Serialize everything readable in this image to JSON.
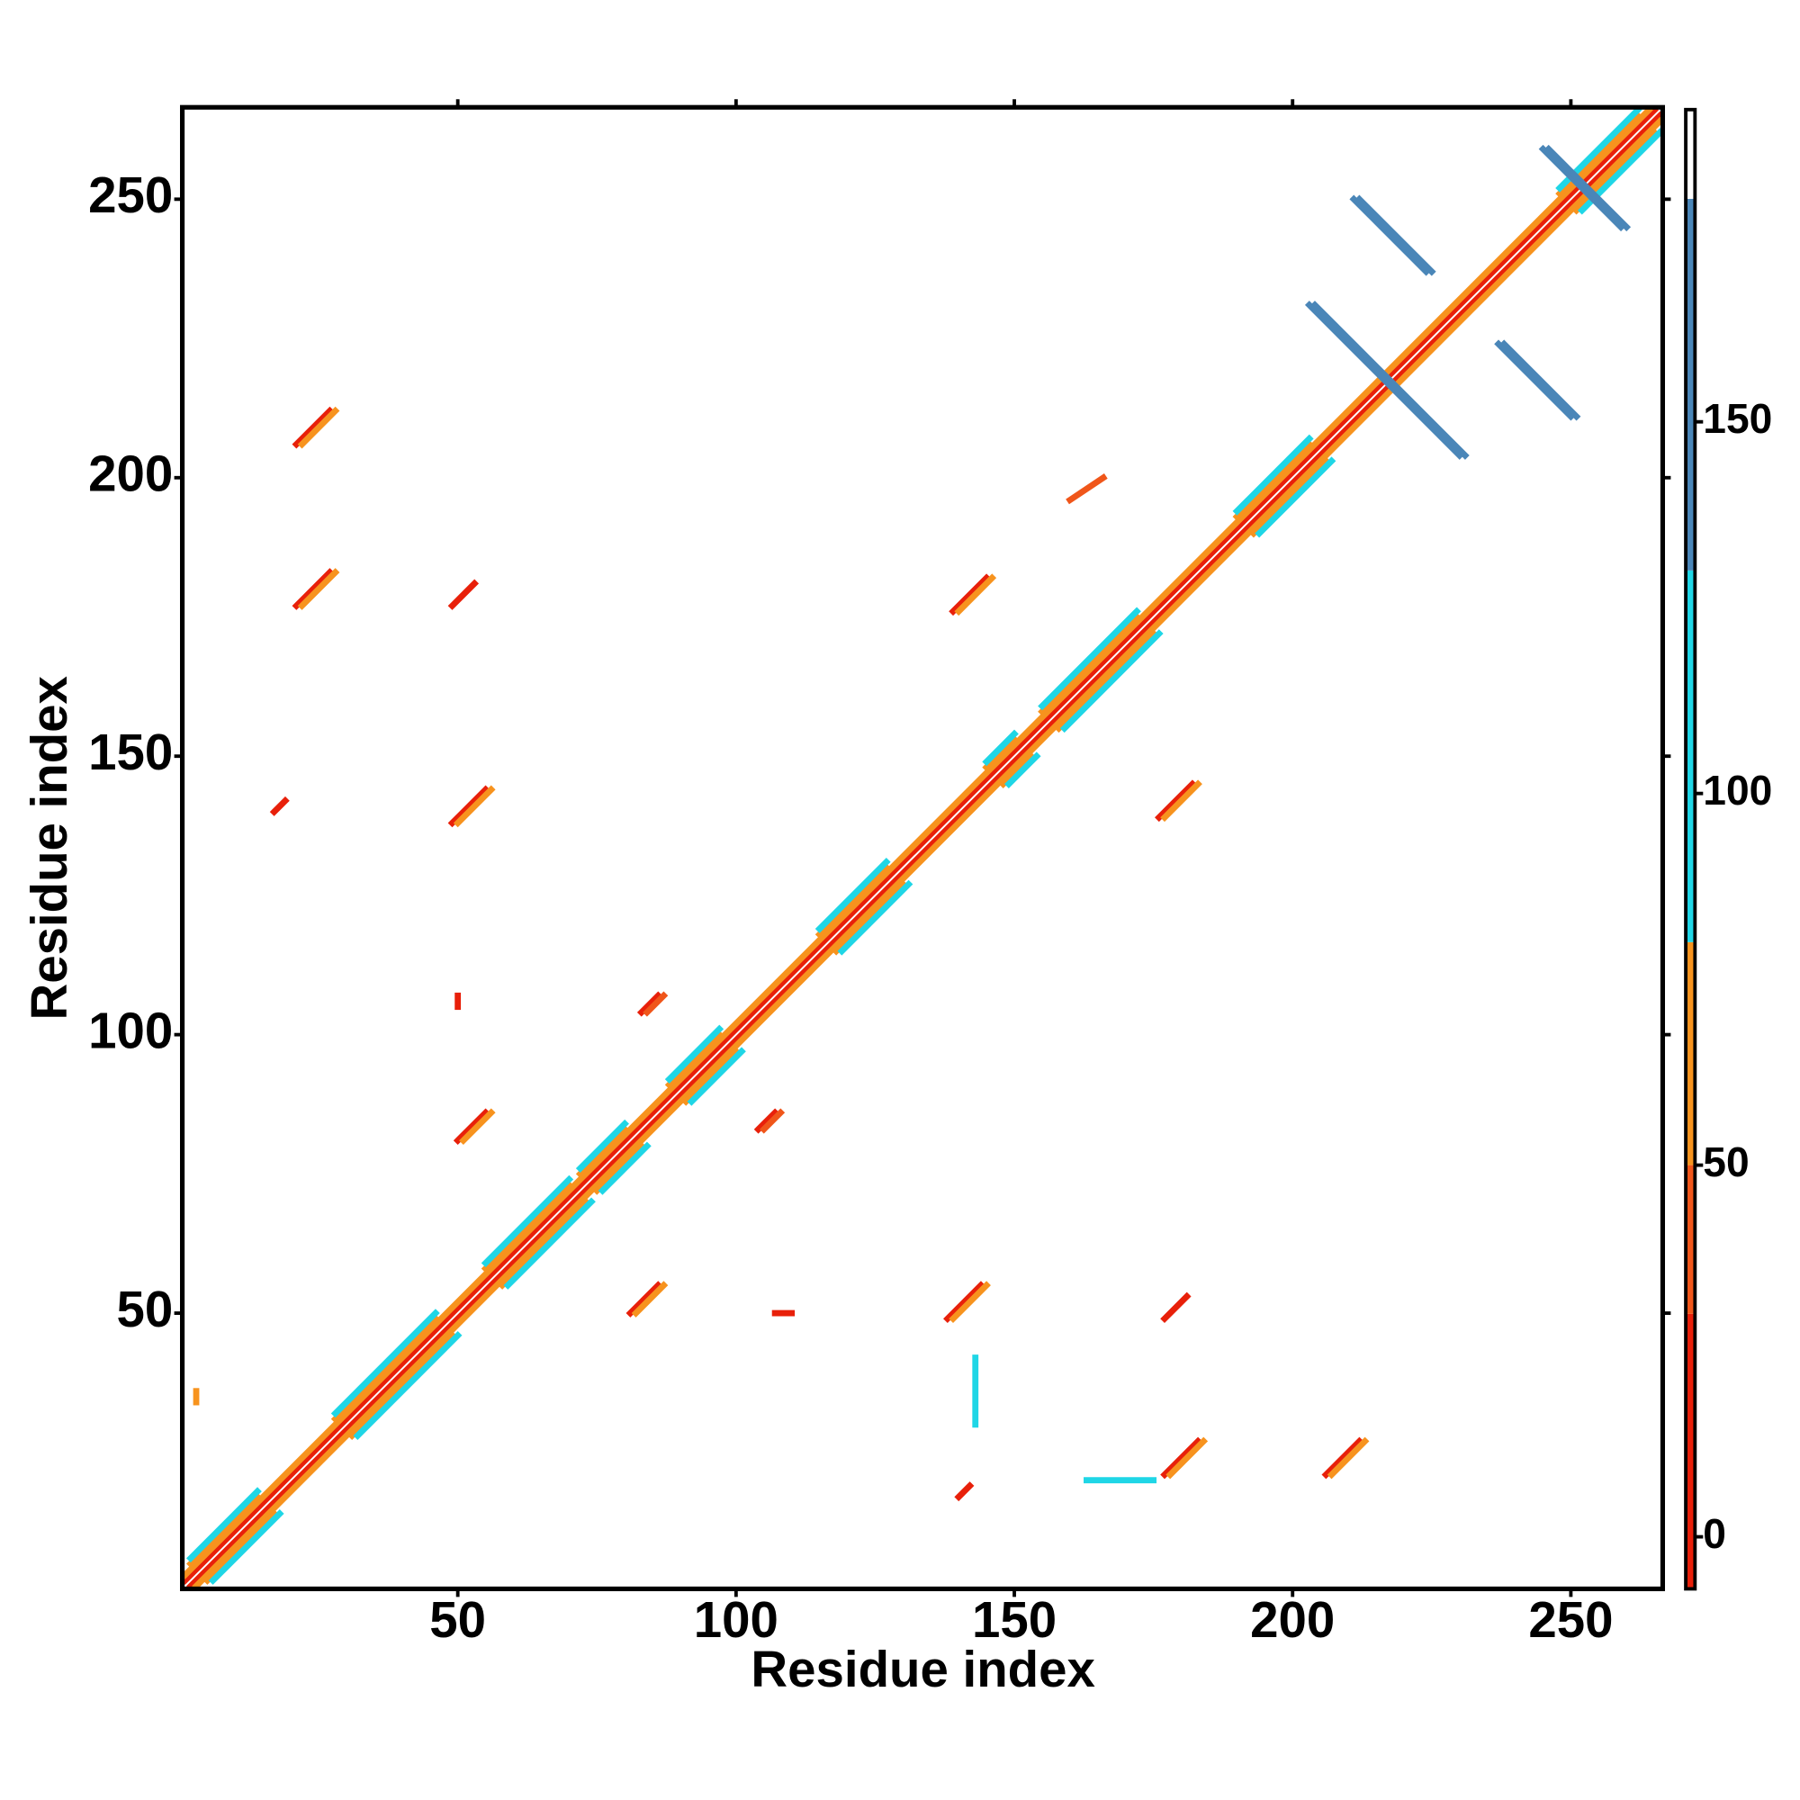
{
  "chart_data": {
    "type": "heatmap",
    "x_label": "Residue index",
    "y_label": "Residue index",
    "xlim": [
      0.5,
      266.5
    ],
    "ylim": [
      0.5,
      266.5
    ],
    "xticks": [
      50,
      100,
      150,
      200,
      250
    ],
    "yticks": [
      50,
      100,
      150,
      200,
      250
    ],
    "clim": [
      -7,
      192
    ],
    "cticks": [
      0,
      50,
      100,
      150
    ],
    "colorscale": [
      {
        "max": 30,
        "color": "#e8200a"
      },
      {
        "max": 50,
        "color": "#f0561a"
      },
      {
        "max": 80,
        "color": "#f7931e"
      },
      {
        "max": 130,
        "color": "#1fd6e6"
      },
      {
        "max": 180,
        "color": "#4a86b8"
      },
      {
        "max": 192,
        "color": "#ffffff"
      }
    ],
    "segments": [
      [
        1,
        2,
        265,
        266,
        5
      ],
      [
        2,
        1,
        266,
        265,
        5
      ],
      [
        1,
        3,
        264,
        266,
        60
      ],
      [
        3,
        1,
        266,
        264,
        60
      ],
      [
        2,
        5,
        14,
        17,
        70
      ],
      [
        5,
        2,
        17,
        14,
        70
      ],
      [
        2,
        6,
        14,
        18,
        95
      ],
      [
        6,
        2,
        18,
        14,
        95
      ],
      [
        28,
        31,
        46,
        49,
        70
      ],
      [
        31,
        28,
        49,
        46,
        70
      ],
      [
        28,
        32,
        46,
        50,
        95
      ],
      [
        32,
        28,
        50,
        46,
        95
      ],
      [
        55,
        58,
        70,
        73,
        70
      ],
      [
        58,
        55,
        73,
        70,
        70
      ],
      [
        55,
        59,
        70,
        74,
        95
      ],
      [
        59,
        55,
        74,
        70,
        95
      ],
      [
        72,
        75,
        80,
        83,
        70
      ],
      [
        75,
        72,
        83,
        80,
        70
      ],
      [
        72,
        76,
        80,
        84,
        95
      ],
      [
        76,
        72,
        84,
        80,
        95
      ],
      [
        88,
        91,
        97,
        100,
        70
      ],
      [
        91,
        88,
        100,
        97,
        70
      ],
      [
        88,
        92,
        97,
        101,
        95
      ],
      [
        92,
        88,
        101,
        97,
        95
      ],
      [
        115,
        118,
        127,
        130,
        70
      ],
      [
        118,
        115,
        130,
        127,
        70
      ],
      [
        115,
        119,
        127,
        131,
        95
      ],
      [
        119,
        115,
        131,
        127,
        95
      ],
      [
        145,
        148,
        150,
        153,
        70
      ],
      [
        148,
        145,
        153,
        150,
        70
      ],
      [
        145,
        149,
        150,
        154,
        95
      ],
      [
        149,
        145,
        154,
        150,
        95
      ],
      [
        155,
        158,
        172,
        175,
        70
      ],
      [
        158,
        155,
        175,
        172,
        70
      ],
      [
        155,
        159,
        172,
        176,
        95
      ],
      [
        159,
        155,
        176,
        172,
        95
      ],
      [
        190,
        193,
        203,
        206,
        70
      ],
      [
        193,
        190,
        206,
        203,
        70
      ],
      [
        190,
        194,
        203,
        207,
        95
      ],
      [
        194,
        190,
        207,
        203,
        95
      ],
      [
        248,
        251,
        262,
        265,
        70
      ],
      [
        251,
        248,
        265,
        262,
        70
      ],
      [
        248,
        252,
        262,
        266,
        95
      ],
      [
        252,
        248,
        266,
        262,
        95
      ],
      [
        21,
        206,
        27,
        212,
        10
      ],
      [
        22,
        206,
        28,
        212,
        60
      ],
      [
        206,
        21,
        212,
        27,
        10
      ],
      [
        207,
        21,
        213,
        27,
        60
      ],
      [
        21,
        177,
        27,
        183,
        10
      ],
      [
        22,
        177,
        28,
        183,
        60
      ],
      [
        177,
        21,
        183,
        27,
        10
      ],
      [
        178,
        21,
        184,
        27,
        60
      ],
      [
        49,
        138,
        55,
        144,
        10
      ],
      [
        50,
        138,
        56,
        144,
        60
      ],
      [
        138,
        49,
        144,
        55,
        10
      ],
      [
        139,
        49,
        145,
        55,
        60
      ],
      [
        176,
        139,
        182,
        145,
        10
      ],
      [
        177,
        139,
        183,
        145,
        60
      ],
      [
        139,
        176,
        145,
        182,
        10
      ],
      [
        140,
        176,
        146,
        182,
        60
      ],
      [
        50,
        81,
        55,
        86,
        10
      ],
      [
        51,
        81,
        56,
        86,
        60
      ],
      [
        81,
        50,
        86,
        55,
        10
      ],
      [
        82,
        50,
        87,
        55,
        60
      ],
      [
        83,
        104,
        86,
        107,
        10
      ],
      [
        84,
        104,
        87,
        107,
        40
      ],
      [
        104,
        83,
        107,
        86,
        10
      ],
      [
        105,
        83,
        108,
        86,
        40
      ],
      [
        203,
        231,
        230,
        204,
        160
      ],
      [
        204,
        231,
        231,
        204,
        160
      ],
      [
        211,
        250,
        224,
        237,
        160
      ],
      [
        212,
        250,
        225,
        237,
        160
      ],
      [
        237,
        224,
        250,
        211,
        160
      ],
      [
        238,
        224,
        251,
        211,
        160
      ],
      [
        245,
        259,
        259,
        245,
        160
      ],
      [
        246,
        259,
        260,
        245,
        160
      ],
      [
        177,
        49,
        181,
        53,
        25
      ],
      [
        49,
        177,
        53,
        181,
        25
      ],
      [
        163,
        20,
        175,
        20,
        95
      ],
      [
        143,
        30,
        143,
        42,
        95
      ],
      [
        140,
        17,
        142,
        19,
        10
      ],
      [
        17,
        140,
        19,
        142,
        10
      ],
      [
        3,
        34,
        3,
        36,
        60
      ],
      [
        160,
        196,
        166,
        200,
        40
      ],
      [
        107,
        50,
        110,
        50,
        10
      ],
      [
        50,
        105,
        50,
        107,
        10
      ]
    ]
  }
}
